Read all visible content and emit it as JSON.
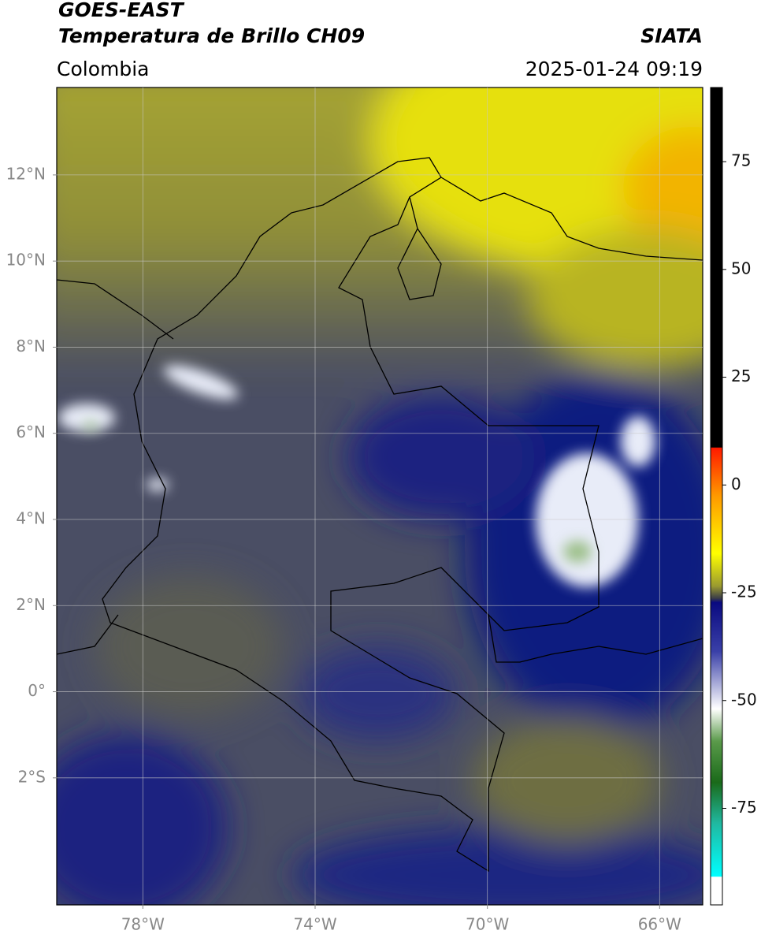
{
  "header": {
    "title": "GOES-EAST",
    "subtitle": "Temperatura de Brillo CH09",
    "region": "Colombia",
    "source": "SIATA",
    "datetime": "2025-01-24 09:19"
  },
  "map": {
    "lonlim": [
      -80,
      -65
    ],
    "latlim": [
      -4.95,
      14.03
    ],
    "lon_ticks": [
      {
        "value": -78,
        "label": "78°W"
      },
      {
        "value": -74,
        "label": "74°W"
      },
      {
        "value": -70,
        "label": "70°W"
      },
      {
        "value": -66,
        "label": "66°W"
      }
    ],
    "lat_ticks": [
      {
        "value": 12,
        "label": "12°N"
      },
      {
        "value": 10,
        "label": "10°N"
      },
      {
        "value": 8,
        "label": "8°N"
      },
      {
        "value": 6,
        "label": "6°N"
      },
      {
        "value": 4,
        "label": "4°N"
      },
      {
        "value": 2,
        "label": "2°N"
      },
      {
        "value": 0,
        "label": "0°"
      },
      {
        "value": -2,
        "label": "2°S"
      }
    ]
  },
  "colorbar": {
    "limits": [
      -97.4,
      92.2
    ],
    "ticks": [
      75,
      50,
      25,
      0,
      -25,
      -50,
      -75
    ]
  }
}
